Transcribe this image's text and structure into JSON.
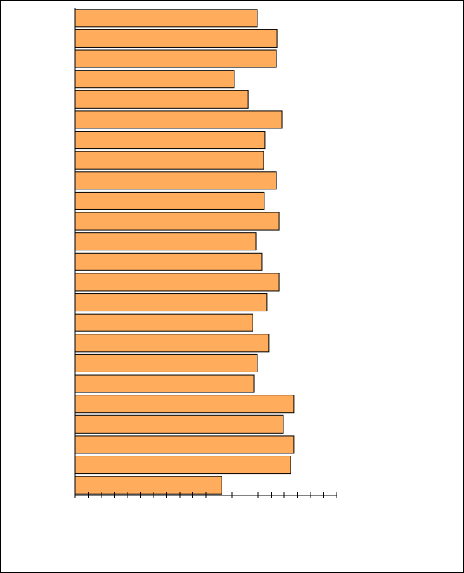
{
  "chart_data": {
    "type": "bar",
    "orientation": "horizontal",
    "categories": [
      null,
      null,
      null,
      null,
      null,
      null,
      null,
      null,
      null,
      null,
      null,
      null,
      null,
      null,
      null,
      null,
      null,
      null,
      null,
      null,
      null,
      null,
      null,
      null
    ],
    "values": [
      69.7,
      77.3,
      77.0,
      60.9,
      66.1,
      79.1,
      72.7,
      72.1,
      77.0,
      72.4,
      77.9,
      69.1,
      71.5,
      77.9,
      73.3,
      67.9,
      74.2,
      69.7,
      68.5,
      83.6,
      79.7,
      83.6,
      82.4,
      56.1
    ],
    "color": "#ffad5c",
    "xlim": [
      0,
      100
    ],
    "xticks": [
      0,
      5,
      10,
      15,
      20,
      25,
      30,
      35,
      40,
      45,
      50,
      55,
      60,
      65,
      70,
      75,
      80,
      85,
      90,
      95,
      100
    ]
  }
}
